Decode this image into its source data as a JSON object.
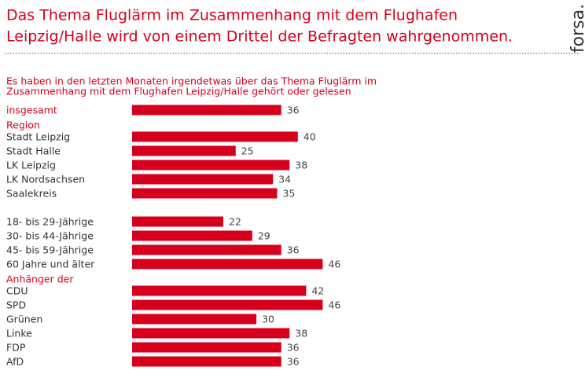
{
  "chart_data": {
    "type": "bar",
    "orientation": "horizontal",
    "title": [
      "Das Thema Fluglärm im Zusammenhang mit dem Flughafen",
      "Leipzig/Halle wird von einem Drittel der Befragten wahrgenommen."
    ],
    "brand": "forsa.",
    "subtitle": [
      "Es haben in den letzten Monaten irgendetwas über das Thema Fluglärm im",
      "Zusammenhang mit dem Flughafen Leipzig/Halle gehört oder gelesen"
    ],
    "color": "#d6001c",
    "groups": [
      {
        "categories": [
          "insgesamt"
        ],
        "values": [
          36
        ]
      },
      {
        "name": "Region",
        "categories": [
          "Stadt Leipzig",
          "Stadt Halle",
          "LK Leipzig",
          "LK Nordsachsen",
          "Saalekreis"
        ],
        "values": [
          40,
          25,
          38,
          34,
          35
        ]
      },
      {
        "categories": [
          "18- bis 29-Jährige",
          "30- bis 44-Jährige",
          "45- bis 59-Jährige",
          "60 Jahre und älter"
        ],
        "values": [
          22,
          29,
          36,
          46
        ]
      },
      {
        "name": "Anhänger der",
        "categories": [
          "CDU",
          "SPD",
          "Grünen",
          "Linke",
          "FDP",
          "AfD"
        ],
        "values": [
          42,
          46,
          30,
          38,
          36,
          36
        ]
      }
    ]
  }
}
